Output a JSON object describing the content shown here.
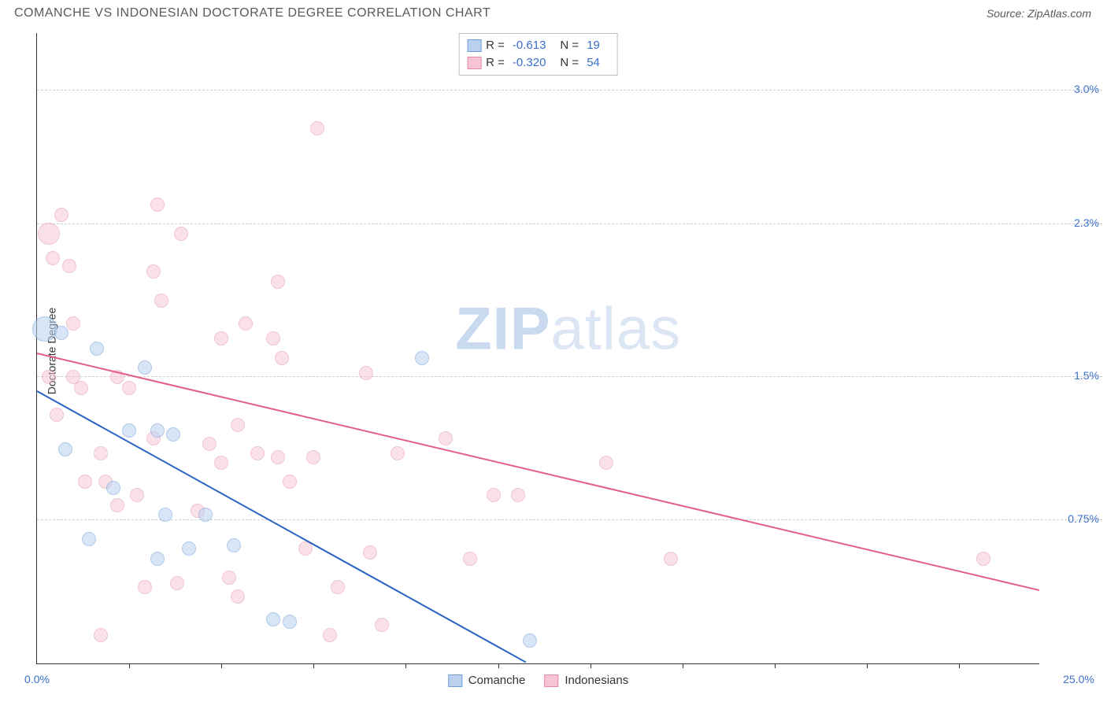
{
  "header": {
    "title": "COMANCHE VS INDONESIAN DOCTORATE DEGREE CORRELATION CHART",
    "source": "Source: ZipAtlas.com"
  },
  "chart": {
    "type": "scatter",
    "ylabel": "Doctorate Degree",
    "background_color": "#ffffff",
    "grid_color": "#cfcfcf",
    "axis_color": "#333333",
    "label_color": "#3b6fc9",
    "xlim": [
      0,
      25
    ],
    "ylim": [
      0,
      3.3
    ],
    "yticks": [
      {
        "v": 0.75,
        "label": "0.75%"
      },
      {
        "v": 1.5,
        "label": "1.5%"
      },
      {
        "v": 2.3,
        "label": "2.3%"
      },
      {
        "v": 3.0,
        "label": "3.0%"
      }
    ],
    "xticks_minor": [
      2.3,
      4.6,
      6.9,
      9.2,
      11.5,
      13.8,
      16.1,
      18.4,
      20.7,
      23.0
    ],
    "xtick_labels": [
      {
        "v": 0,
        "label": "0.0%"
      },
      {
        "v": 25,
        "label": "25.0%"
      }
    ],
    "watermark": {
      "part1": "ZIP",
      "part2": "atlas"
    },
    "series": {
      "comanche": {
        "label": "Comanche",
        "fill": "#b9d1ef",
        "stroke": "#6f9fd8",
        "fill_opacity": 0.55,
        "point_radius": 9,
        "trend": {
          "color": "#2b63c4",
          "x1": 0,
          "y1": 1.42,
          "x2": 12.2,
          "y2": 0.0
        }
      },
      "indonesian": {
        "label": "Indonesians",
        "fill": "#f6c4d2",
        "stroke": "#e58aa6",
        "fill_opacity": 0.5,
        "point_radius": 9,
        "trend": {
          "color": "#e15f87",
          "x1": 0,
          "y1": 1.62,
          "x2": 25,
          "y2": 0.38
        }
      }
    },
    "legend_top": [
      {
        "series": "comanche",
        "r_label": "R =",
        "r_value": "-0.613",
        "n_label": "N =",
        "n_value": "19"
      },
      {
        "series": "indonesian",
        "r_label": "R =",
        "r_value": "-0.320",
        "n_label": "N =",
        "n_value": "54"
      }
    ],
    "points": {
      "comanche": [
        {
          "x": 0.2,
          "y": 1.75,
          "r": 16
        },
        {
          "x": 0.6,
          "y": 1.73,
          "r": 9
        },
        {
          "x": 1.5,
          "y": 1.65,
          "r": 9
        },
        {
          "x": 2.7,
          "y": 1.55,
          "r": 9
        },
        {
          "x": 0.7,
          "y": 1.12,
          "r": 9
        },
        {
          "x": 2.3,
          "y": 1.22,
          "r": 9
        },
        {
          "x": 3.0,
          "y": 1.22,
          "r": 9
        },
        {
          "x": 3.4,
          "y": 1.2,
          "r": 9
        },
        {
          "x": 1.9,
          "y": 0.92,
          "r": 9
        },
        {
          "x": 3.2,
          "y": 0.78,
          "r": 9
        },
        {
          "x": 4.2,
          "y": 0.78,
          "r": 9
        },
        {
          "x": 1.3,
          "y": 0.65,
          "r": 9
        },
        {
          "x": 3.0,
          "y": 0.55,
          "r": 9
        },
        {
          "x": 3.8,
          "y": 0.6,
          "r": 9
        },
        {
          "x": 4.9,
          "y": 0.62,
          "r": 9
        },
        {
          "x": 5.9,
          "y": 0.23,
          "r": 9
        },
        {
          "x": 6.3,
          "y": 0.22,
          "r": 9
        },
        {
          "x": 12.3,
          "y": 0.12,
          "r": 9
        },
        {
          "x": 9.6,
          "y": 1.6,
          "r": 9
        }
      ],
      "indonesian": [
        {
          "x": 0.3,
          "y": 2.25,
          "r": 14
        },
        {
          "x": 0.6,
          "y": 2.35,
          "r": 9
        },
        {
          "x": 0.4,
          "y": 2.12,
          "r": 9
        },
        {
          "x": 0.8,
          "y": 2.08,
          "r": 9
        },
        {
          "x": 0.9,
          "y": 1.78,
          "r": 9
        },
        {
          "x": 0.3,
          "y": 1.5,
          "r": 9
        },
        {
          "x": 0.9,
          "y": 1.5,
          "r": 9
        },
        {
          "x": 1.1,
          "y": 1.44,
          "r": 9
        },
        {
          "x": 0.5,
          "y": 1.3,
          "r": 9
        },
        {
          "x": 2.0,
          "y": 1.5,
          "r": 9
        },
        {
          "x": 2.3,
          "y": 1.44,
          "r": 9
        },
        {
          "x": 2.9,
          "y": 2.05,
          "r": 9
        },
        {
          "x": 3.1,
          "y": 1.9,
          "r": 9
        },
        {
          "x": 3.6,
          "y": 2.25,
          "r": 9
        },
        {
          "x": 3.0,
          "y": 2.4,
          "r": 9
        },
        {
          "x": 4.6,
          "y": 1.7,
          "r": 9
        },
        {
          "x": 5.2,
          "y": 1.78,
          "r": 9
        },
        {
          "x": 5.9,
          "y": 1.7,
          "r": 9
        },
        {
          "x": 6.0,
          "y": 2.0,
          "r": 9
        },
        {
          "x": 6.1,
          "y": 1.6,
          "r": 9
        },
        {
          "x": 7.0,
          "y": 2.8,
          "r": 9
        },
        {
          "x": 6.9,
          "y": 1.08,
          "r": 9
        },
        {
          "x": 6.7,
          "y": 0.6,
          "r": 9
        },
        {
          "x": 6.0,
          "y": 1.08,
          "r": 9
        },
        {
          "x": 5.5,
          "y": 1.1,
          "r": 9
        },
        {
          "x": 5.0,
          "y": 1.25,
          "r": 9
        },
        {
          "x": 4.3,
          "y": 1.15,
          "r": 9
        },
        {
          "x": 4.0,
          "y": 0.8,
          "r": 9
        },
        {
          "x": 4.8,
          "y": 0.45,
          "r": 9
        },
        {
          "x": 5.0,
          "y": 0.35,
          "r": 9
        },
        {
          "x": 3.5,
          "y": 0.42,
          "r": 9
        },
        {
          "x": 2.7,
          "y": 0.4,
          "r": 9
        },
        {
          "x": 2.5,
          "y": 0.88,
          "r": 9
        },
        {
          "x": 2.0,
          "y": 0.83,
          "r": 9
        },
        {
          "x": 1.7,
          "y": 0.95,
          "r": 9
        },
        {
          "x": 1.6,
          "y": 1.1,
          "r": 9
        },
        {
          "x": 1.2,
          "y": 0.95,
          "r": 9
        },
        {
          "x": 1.6,
          "y": 0.15,
          "r": 9
        },
        {
          "x": 7.3,
          "y": 0.15,
          "r": 9
        },
        {
          "x": 8.2,
          "y": 1.52,
          "r": 9
        },
        {
          "x": 7.5,
          "y": 0.4,
          "r": 9
        },
        {
          "x": 8.3,
          "y": 0.58,
          "r": 9
        },
        {
          "x": 9.0,
          "y": 1.1,
          "r": 9
        },
        {
          "x": 8.6,
          "y": 0.2,
          "r": 9
        },
        {
          "x": 10.2,
          "y": 1.18,
          "r": 9
        },
        {
          "x": 10.8,
          "y": 0.55,
          "r": 9
        },
        {
          "x": 11.4,
          "y": 0.88,
          "r": 9
        },
        {
          "x": 12.0,
          "y": 0.88,
          "r": 9
        },
        {
          "x": 14.2,
          "y": 1.05,
          "r": 9
        },
        {
          "x": 15.8,
          "y": 0.55,
          "r": 9
        },
        {
          "x": 23.6,
          "y": 0.55,
          "r": 9
        },
        {
          "x": 6.3,
          "y": 0.95,
          "r": 9
        },
        {
          "x": 4.6,
          "y": 1.05,
          "r": 9
        },
        {
          "x": 2.9,
          "y": 1.18,
          "r": 9
        }
      ]
    }
  }
}
